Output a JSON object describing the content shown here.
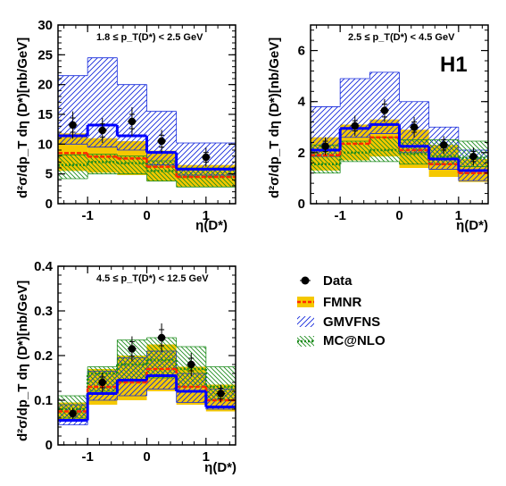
{
  "experiment_label": "H1",
  "y_axis_label": "d²σ/dp_T dη (D*)[nb/GeV]",
  "x_axis_label": "η(D*)",
  "legend": {
    "data": "Data",
    "fmnr": "FMNR",
    "gmvfns": "GMVFNS",
    "mcnlo": "MC@NLO"
  },
  "colors": {
    "fmnr_band": "#f5c800",
    "fmnr_line": "#ff2a00",
    "gmvfns": "#1428dc",
    "mcnlo": "#1e8c1e",
    "data_line": "#0000ff"
  },
  "chart_data": [
    {
      "type": "histogram",
      "title": "1.8 ≤ p_T(D*) < 2.5 GeV",
      "xlabel": "η(D*)",
      "ylabel": "d²σ/dp_T dη (D*)[nb/GeV]",
      "xlim": [
        -1.5,
        1.5
      ],
      "ylim": [
        0,
        30
      ],
      "xticks": [
        -1,
        0,
        1
      ],
      "yticks": [
        0,
        5,
        10,
        15,
        20,
        25,
        30
      ],
      "bin_edges": [
        -1.5,
        -1.0,
        -0.5,
        0.0,
        0.5,
        1.5
      ],
      "data": {
        "x": [
          -1.25,
          -0.75,
          -0.25,
          0.25,
          1.0
        ],
        "y": [
          13.2,
          12.3,
          13.8,
          10.5,
          7.8
        ],
        "stat_err": [
          1.2,
          1.1,
          1.2,
          1.0,
          0.8
        ],
        "tot_err": [
          2.3,
          2.1,
          2.4,
          1.9,
          1.6
        ]
      },
      "central_line": [
        11.4,
        13.2,
        11.4,
        8.6,
        5.8
      ],
      "fmnr": {
        "center": [
          8.5,
          7.9,
          7.6,
          6.2,
          4.5
        ],
        "low": [
          5.5,
          5.2,
          4.8,
          3.8,
          2.8
        ],
        "high": [
          11.8,
          11.0,
          10.5,
          8.9,
          6.5
        ]
      },
      "gmvfns": {
        "low": [
          10.0,
          9.5,
          9.0,
          6.5,
          4.8
        ],
        "high": [
          21.5,
          24.5,
          20.0,
          15.5,
          10.2
        ]
      },
      "mcnlo": {
        "center": [
          6.5,
          7.0,
          6.8,
          5.5,
          4.5
        ],
        "low": [
          4.2,
          5.0,
          5.0,
          3.8,
          2.8
        ],
        "high": [
          8.2,
          8.3,
          8.0,
          7.2,
          6.0
        ]
      }
    },
    {
      "type": "histogram",
      "title": "2.5 ≤ p_T(D*) < 4.5 GeV",
      "xlabel": "η(D*)",
      "ylabel": "d²σ/dp_T dη (D*)[nb/GeV]",
      "xlim": [
        -1.5,
        1.5
      ],
      "ylim": [
        0,
        7
      ],
      "xticks": [
        -1,
        0,
        1
      ],
      "yticks": [
        0,
        2,
        4,
        6
      ],
      "bin_edges": [
        -1.5,
        -1.0,
        -0.5,
        0.0,
        0.5,
        1.0,
        1.5
      ],
      "data": {
        "x": [
          -1.25,
          -0.75,
          -0.25,
          0.25,
          0.75,
          1.25
        ],
        "y": [
          2.25,
          3.05,
          3.65,
          3.0,
          2.3,
          1.85
        ],
        "stat_err": [
          0.2,
          0.2,
          0.25,
          0.2,
          0.2,
          0.2
        ],
        "tot_err": [
          0.35,
          0.4,
          0.45,
          0.4,
          0.35,
          0.35
        ]
      },
      "central_line": [
        2.1,
        2.95,
        3.1,
        2.25,
        1.75,
        1.3
      ],
      "fmnr": {
        "center": [
          1.9,
          2.35,
          2.6,
          2.1,
          1.55,
          1.2
        ],
        "low": [
          1.3,
          1.7,
          1.85,
          1.4,
          1.05,
          0.85
        ],
        "high": [
          2.6,
          3.1,
          3.3,
          2.9,
          2.3,
          1.75
        ]
      },
      "gmvfns": {
        "low": [
          1.85,
          2.6,
          2.75,
          2.0,
          1.35,
          0.9
        ],
        "high": [
          3.8,
          4.9,
          5.15,
          4.0,
          3.0,
          2.1
        ]
      },
      "mcnlo": {
        "center": [
          1.55,
          2.0,
          2.1,
          1.95,
          1.85,
          1.8
        ],
        "low": [
          1.2,
          1.65,
          1.65,
          1.55,
          1.55,
          1.45
        ],
        "high": [
          2.3,
          2.45,
          2.6,
          2.5,
          2.5,
          2.45
        ]
      }
    },
    {
      "type": "histogram",
      "title": "4.5 ≤ p_T(D*) < 12.5 GeV",
      "xlabel": "η(D*)",
      "ylabel": "d²σ/dp_T dη (D*)[nb/GeV]",
      "xlim": [
        -1.5,
        1.5
      ],
      "ylim": [
        0,
        0.4
      ],
      "xticks": [
        -1,
        0,
        1
      ],
      "yticks": [
        0,
        0.1,
        0.2,
        0.3,
        0.4
      ],
      "bin_edges": [
        -1.5,
        -1.0,
        -0.5,
        0.0,
        0.5,
        1.0,
        1.5
      ],
      "data": {
        "x": [
          -1.25,
          -0.75,
          -0.25,
          0.25,
          0.75,
          1.25
        ],
        "y": [
          0.07,
          0.14,
          0.215,
          0.24,
          0.18,
          0.115
        ],
        "stat_err": [
          0.006,
          0.012,
          0.016,
          0.018,
          0.014,
          0.012
        ],
        "tot_err": [
          0.012,
          0.022,
          0.028,
          0.032,
          0.026,
          0.02
        ]
      },
      "central_line": [
        0.055,
        0.115,
        0.145,
        0.155,
        0.12,
        0.085
      ],
      "fmnr": {
        "center": [
          0.075,
          0.13,
          0.14,
          0.17,
          0.13,
          0.1
        ],
        "low": [
          0.055,
          0.09,
          0.1,
          0.12,
          0.09,
          0.075
        ],
        "high": [
          0.095,
          0.17,
          0.2,
          0.225,
          0.175,
          0.135
        ]
      },
      "gmvfns": {
        "low": [
          0.045,
          0.1,
          0.11,
          0.125,
          0.095,
          0.08
        ],
        "high": [
          0.09,
          0.165,
          0.195,
          0.21,
          0.16,
          0.125
        ]
      },
      "mcnlo": {
        "center": [
          0.08,
          0.16,
          0.18,
          0.19,
          0.17,
          0.13
        ],
        "low": [
          0.06,
          0.12,
          0.14,
          0.15,
          0.13,
          0.1
        ],
        "high": [
          0.11,
          0.175,
          0.235,
          0.24,
          0.22,
          0.175
        ]
      }
    }
  ]
}
